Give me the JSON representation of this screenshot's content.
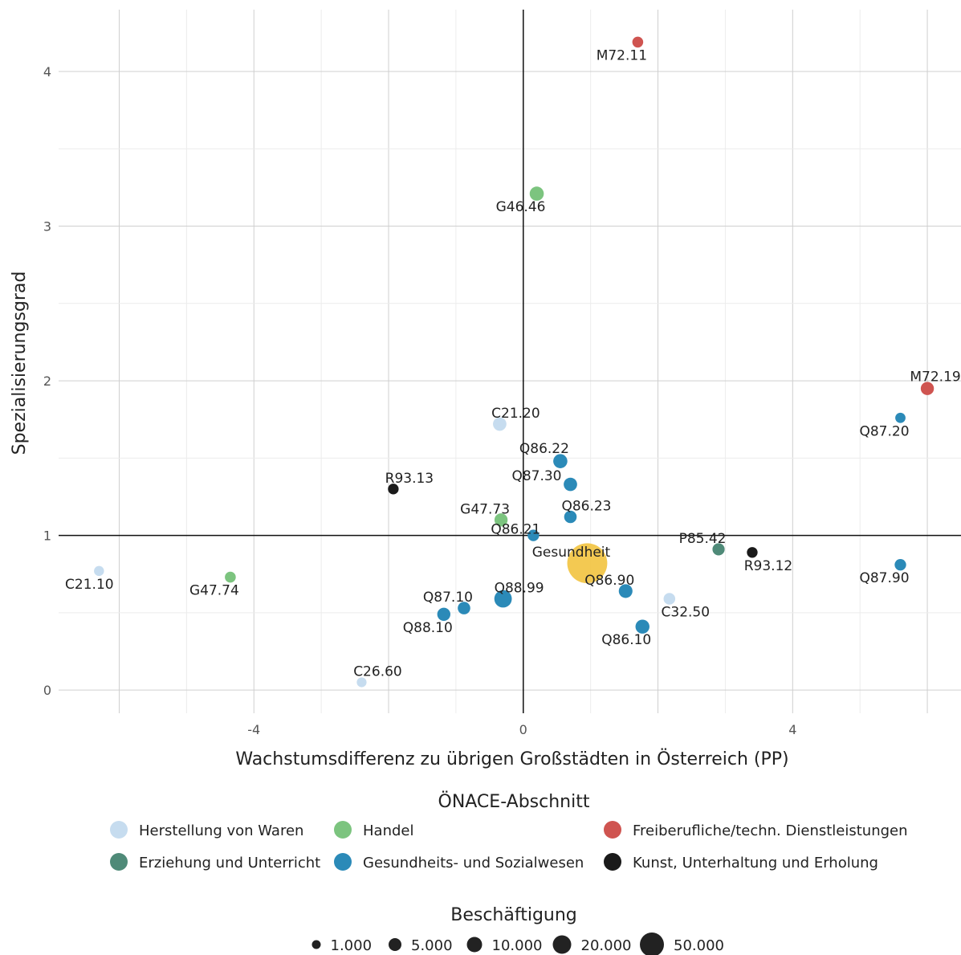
{
  "chart_data": {
    "type": "scatter",
    "xlabel": "Wachstumsdifferenz zu übrigen Großstädten in Österreich (PP)",
    "ylabel": "Spezialisierungsgrad",
    "xlim": [
      -6.9,
      6.5
    ],
    "ylim": [
      -0.15,
      4.4
    ],
    "x_ticks": [
      -4,
      0,
      4
    ],
    "y_ticks": [
      0,
      1,
      2,
      3,
      4
    ],
    "x_tick_labels": [
      "-4",
      "0",
      "4"
    ],
    "y_tick_labels": [
      "0",
      "1",
      "2",
      "3",
      "4"
    ],
    "grid": true,
    "reference_lines": {
      "x": 0,
      "y": 1
    },
    "legend_position": "bottom",
    "color_legend": {
      "title": "ÖNACE-Abschnitt",
      "entries": [
        {
          "key": "herstellung",
          "label": "Herstellung von Waren",
          "color": "#c6dcef"
        },
        {
          "key": "handel",
          "label": "Handel",
          "color": "#7cc47f"
        },
        {
          "key": "freiberuf",
          "label": "Freiberufliche/techn. Dienstleistungen",
          "color": "#cf5450"
        },
        {
          "key": "erziehung",
          "label": "Erziehung und Unterricht",
          "color": "#4f8a78"
        },
        {
          "key": "gesundheit",
          "label": "Gesundheits- und Sozialwesen",
          "color": "#2b8ab8"
        },
        {
          "key": "kunst",
          "label": "Kunst, Unterhaltung und Erholung",
          "color": "#1a1a1a"
        }
      ]
    },
    "size_legend": {
      "title": "Beschäftigung",
      "entries": [
        {
          "label": "1.000",
          "value": 1000
        },
        {
          "label": "5.000",
          "value": 5000
        },
        {
          "label": "10.000",
          "value": 10000
        },
        {
          "label": "20.000",
          "value": 20000
        },
        {
          "label": "50.000",
          "value": 50000
        }
      ]
    },
    "highlight_color": "#f2c443",
    "points": [
      {
        "label": "M72.11",
        "x": 1.7,
        "y": 4.19,
        "group": "freiberuf",
        "size": 1500
      },
      {
        "label": "G46.46",
        "x": 0.2,
        "y": 3.21,
        "group": "handel",
        "size": 3500
      },
      {
        "label": "M72.19",
        "x": 6.0,
        "y": 1.95,
        "group": "freiberuf",
        "size": 2800
      },
      {
        "label": "Q87.20",
        "x": 5.6,
        "y": 1.76,
        "group": "gesundheit",
        "size": 1200
      },
      {
        "label": "C21.20",
        "x": -0.35,
        "y": 1.72,
        "group": "herstellung",
        "size": 3000
      },
      {
        "label": "Q86.22",
        "x": 0.55,
        "y": 1.48,
        "group": "gesundheit",
        "size": 3500
      },
      {
        "label": "Q87.30",
        "x": 0.7,
        "y": 1.33,
        "group": "gesundheit",
        "size": 3000
      },
      {
        "label": "R93.13",
        "x": -1.93,
        "y": 1.3,
        "group": "kunst",
        "size": 1400
      },
      {
        "label": "Q86.23",
        "x": 0.7,
        "y": 1.12,
        "group": "gesundheit",
        "size": 2400
      },
      {
        "label": "G47.73",
        "x": -0.33,
        "y": 1.1,
        "group": "handel",
        "size": 2800
      },
      {
        "label": "Q86.21",
        "x": 0.15,
        "y": 1.0,
        "group": "gesundheit",
        "size": 1800
      },
      {
        "label": "P85.42",
        "x": 2.9,
        "y": 0.91,
        "group": "erziehung",
        "size": 2200
      },
      {
        "label": "R93.12",
        "x": 3.4,
        "y": 0.89,
        "group": "kunst",
        "size": 1400
      },
      {
        "label": "Gesundheit",
        "x": 0.95,
        "y": 0.82,
        "group": "highlight",
        "size": 50000
      },
      {
        "label": "Q87.90",
        "x": 5.6,
        "y": 0.81,
        "group": "gesundheit",
        "size": 1800
      },
      {
        "label": "C21.10",
        "x": -6.3,
        "y": 0.77,
        "group": "herstellung",
        "size": 1100
      },
      {
        "label": "G47.74",
        "x": -4.35,
        "y": 0.73,
        "group": "handel",
        "size": 1500
      },
      {
        "label": "Q86.90",
        "x": 1.52,
        "y": 0.64,
        "group": "gesundheit",
        "size": 3200
      },
      {
        "label": "Q88.99",
        "x": -0.3,
        "y": 0.59,
        "group": "gesundheit",
        "size": 6500
      },
      {
        "label": "C32.50",
        "x": 2.17,
        "y": 0.59,
        "group": "herstellung",
        "size": 1900
      },
      {
        "label": "Q87.10",
        "x": -0.88,
        "y": 0.53,
        "group": "gesundheit",
        "size": 2400
      },
      {
        "label": "Q88.10",
        "x": -1.18,
        "y": 0.49,
        "group": "gesundheit",
        "size": 2800
      },
      {
        "label": "Q86.10",
        "x": 1.77,
        "y": 0.41,
        "group": "gesundheit",
        "size": 3400
      },
      {
        "label": "C26.60",
        "x": -2.4,
        "y": 0.05,
        "group": "herstellung",
        "size": 1000
      }
    ]
  }
}
